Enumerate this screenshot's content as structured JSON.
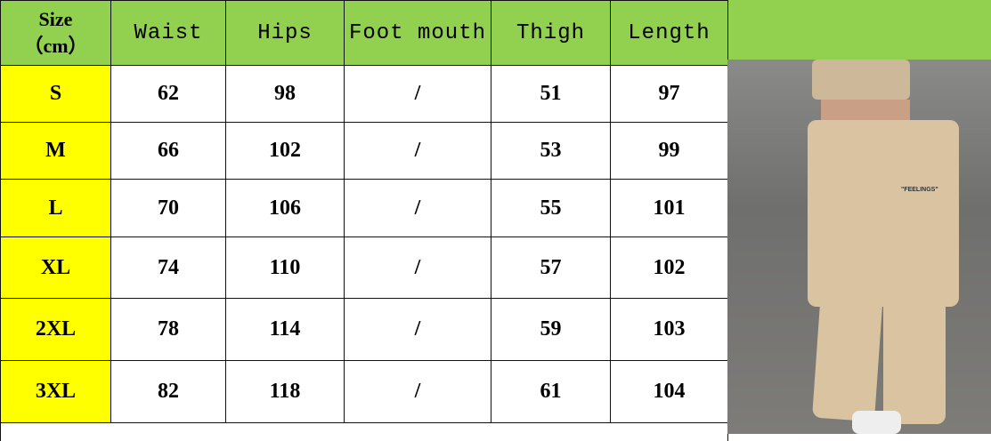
{
  "colors": {
    "header": "#92d050",
    "size_cell": "#ffff00",
    "pants": "#d9c3a0"
  },
  "headers": [
    "Size\n（cm）",
    "Waist",
    "Hips",
    "Foot mouth",
    "Thigh",
    "Length"
  ],
  "header_size_line1": "Size",
  "header_size_line2": "（cm）",
  "rows": [
    {
      "size": "S",
      "waist": "62",
      "hips": "98",
      "foot_mouth": "/",
      "thigh": "51",
      "length": "97"
    },
    {
      "size": "M",
      "waist": "66",
      "hips": "102",
      "foot_mouth": "/",
      "thigh": "53",
      "length": "99"
    },
    {
      "size": "L",
      "waist": "70",
      "hips": "106",
      "foot_mouth": "/",
      "thigh": "55",
      "length": "101"
    },
    {
      "size": "XL",
      "waist": "74",
      "hips": "110",
      "foot_mouth": "/",
      "thigh": "57",
      "length": "102"
    },
    {
      "size": "2XL",
      "waist": "78",
      "hips": "114",
      "foot_mouth": "/",
      "thigh": "59",
      "length": "103"
    },
    {
      "size": "3XL",
      "waist": "82",
      "hips": "118",
      "foot_mouth": "/",
      "thigh": "61",
      "length": "104"
    }
  ],
  "photo": {
    "print_text": "\"FEELINGS\""
  }
}
